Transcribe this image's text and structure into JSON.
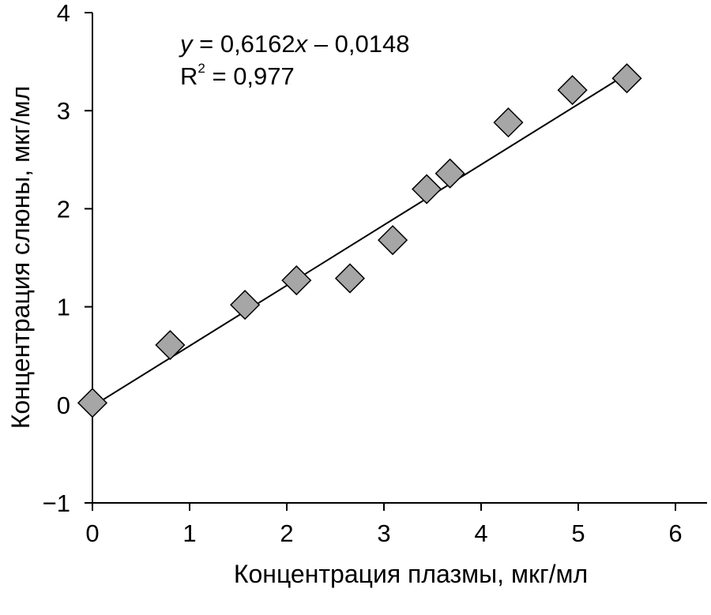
{
  "chart_data": {
    "type": "scatter",
    "title": "",
    "xlabel": "Концентрация плазмы, мкг/мл",
    "ylabel": "Концентрация слюны, мкг/мл",
    "xlim": [
      0,
      6
    ],
    "ylim": [
      -1,
      4
    ],
    "x_ticks": [
      "0",
      "1",
      "2",
      "3",
      "4",
      "5",
      "6"
    ],
    "y_ticks": [
      "−1",
      "0",
      "1",
      "2",
      "3",
      "4"
    ],
    "grid": false,
    "legend": "none",
    "marker": "diamond",
    "marker_color": "#a6a6a6",
    "line_color": "#000000",
    "points": [
      {
        "x": 0.0,
        "y": 0.02
      },
      {
        "x": 0.8,
        "y": 0.61
      },
      {
        "x": 1.57,
        "y": 1.02
      },
      {
        "x": 2.1,
        "y": 1.27
      },
      {
        "x": 2.65,
        "y": 1.29
      },
      {
        "x": 3.09,
        "y": 1.68
      },
      {
        "x": 3.44,
        "y": 2.2
      },
      {
        "x": 3.68,
        "y": 2.36
      },
      {
        "x": 4.28,
        "y": 2.88
      },
      {
        "x": 4.94,
        "y": 3.21
      },
      {
        "x": 5.5,
        "y": 3.33
      }
    ],
    "trendline": {
      "slope": 0.6162,
      "intercept": -0.0148,
      "x_range": [
        0,
        5.5
      ],
      "equation_prefix": "y",
      "equation_middle": " = 0,6162",
      "equation_var": "x",
      "equation_suffix": " – 0,0148",
      "r2_label": "R",
      "r2_sup": "2",
      "r2_value": " = 0,977"
    }
  }
}
